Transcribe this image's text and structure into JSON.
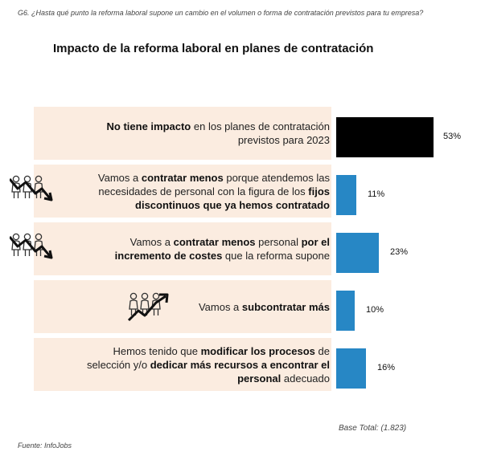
{
  "question": "G6. ¿Hasta qué punto la reforma laboral supone un cambio en el volumen o forma de contratación previstos para tu empresa?",
  "footer": {
    "base_total": "Base Total: (1.823)",
    "source": "Fuente: InfoJobs"
  },
  "colors": {
    "bar_highlight": "#000000",
    "bar_default": "#2787c5",
    "label_background": "#fbece0"
  },
  "chart_data": {
    "type": "bar",
    "orientation": "horizontal",
    "title": "Impacto de la reforma laboral en planes de contratación",
    "xlabel": "",
    "ylabel": "",
    "xlim": [
      0,
      53
    ],
    "grid": false,
    "legend": "none",
    "unit": "%",
    "categories": [
      {
        "segments": [
          {
            "text": "No tiene impacto",
            "bold": true
          },
          {
            "text": " en los planes de contratación",
            "bold": false
          },
          {
            "br": true
          },
          {
            "text": "previstos para 2023",
            "bold": false
          }
        ],
        "icon": null,
        "color": "#000000"
      },
      {
        "segments": [
          {
            "text": "Vamos a ",
            "bold": false
          },
          {
            "text": "contratar menos",
            "bold": true
          },
          {
            "text": " porque atendemos las",
            "bold": false
          },
          {
            "br": true
          },
          {
            "text": "necesidades de personal con la figura de los ",
            "bold": false
          },
          {
            "text": "fijos",
            "bold": true
          },
          {
            "br": true
          },
          {
            "text": "discontinuos que ya hemos contratado",
            "bold": true
          }
        ],
        "icon": "people-trend-down-icon",
        "color": "#2787c5"
      },
      {
        "segments": [
          {
            "text": "Vamos a ",
            "bold": false
          },
          {
            "text": "contratar menos",
            "bold": true
          },
          {
            "text": " personal ",
            "bold": false
          },
          {
            "text": "por el",
            "bold": true
          },
          {
            "br": true
          },
          {
            "text": "incremento de costes",
            "bold": true
          },
          {
            "text": " que la reforma supone",
            "bold": false
          }
        ],
        "icon": "people-trend-down-icon",
        "color": "#2787c5"
      },
      {
        "segments": [
          {
            "text": "Vamos a ",
            "bold": false
          },
          {
            "text": "subcontratar más",
            "bold": true
          }
        ],
        "icon": "people-trend-up-icon",
        "color": "#2787c5"
      },
      {
        "segments": [
          {
            "text": "Hemos tenido que ",
            "bold": false
          },
          {
            "text": "modificar los procesos",
            "bold": true
          },
          {
            "text": " de",
            "bold": false
          },
          {
            "br": true
          },
          {
            "text": "selección y/o ",
            "bold": false
          },
          {
            "text": "dedicar más recursos a encontrar el",
            "bold": true
          },
          {
            "br": true
          },
          {
            "text": "personal",
            "bold": true
          },
          {
            "text": " adecuado",
            "bold": false
          }
        ],
        "icon": null,
        "color": "#2787c5"
      }
    ],
    "values": [
      53,
      11,
      23,
      10,
      16
    ],
    "value_labels": [
      "53%",
      "11%",
      "23%",
      "10%",
      "16%"
    ]
  }
}
